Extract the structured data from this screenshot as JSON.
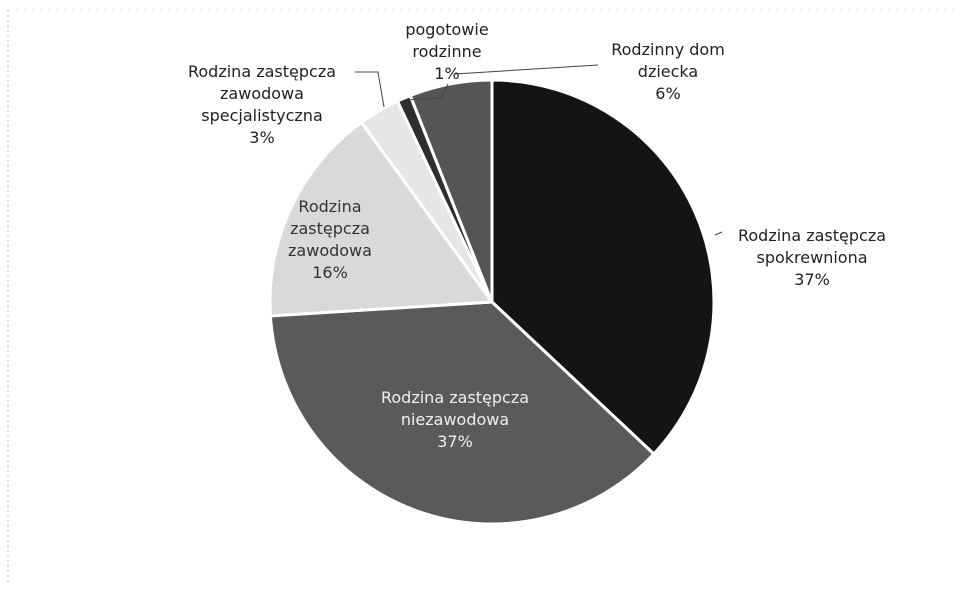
{
  "chart_data": {
    "type": "pie",
    "categories": [
      "Rodzina zastępcza spokrewniona",
      "Rodzina zastępcza niezawodowa",
      "Rodzina zastępcza zawodowa",
      "Rodzina zastępcza zawodowa specjalistyczna",
      "pogotowie rodzinne",
      "Rodzinny dom dziecka"
    ],
    "values": [
      37,
      37,
      16,
      3,
      1,
      6
    ],
    "value_labels": [
      "37%",
      "37%",
      "16%",
      "3%",
      "1%",
      "6%"
    ],
    "colors": [
      "#141414",
      "#5a5a5a",
      "#d9d9d9",
      "#e6e6e6",
      "#2e2e2e",
      "#555555"
    ]
  }
}
